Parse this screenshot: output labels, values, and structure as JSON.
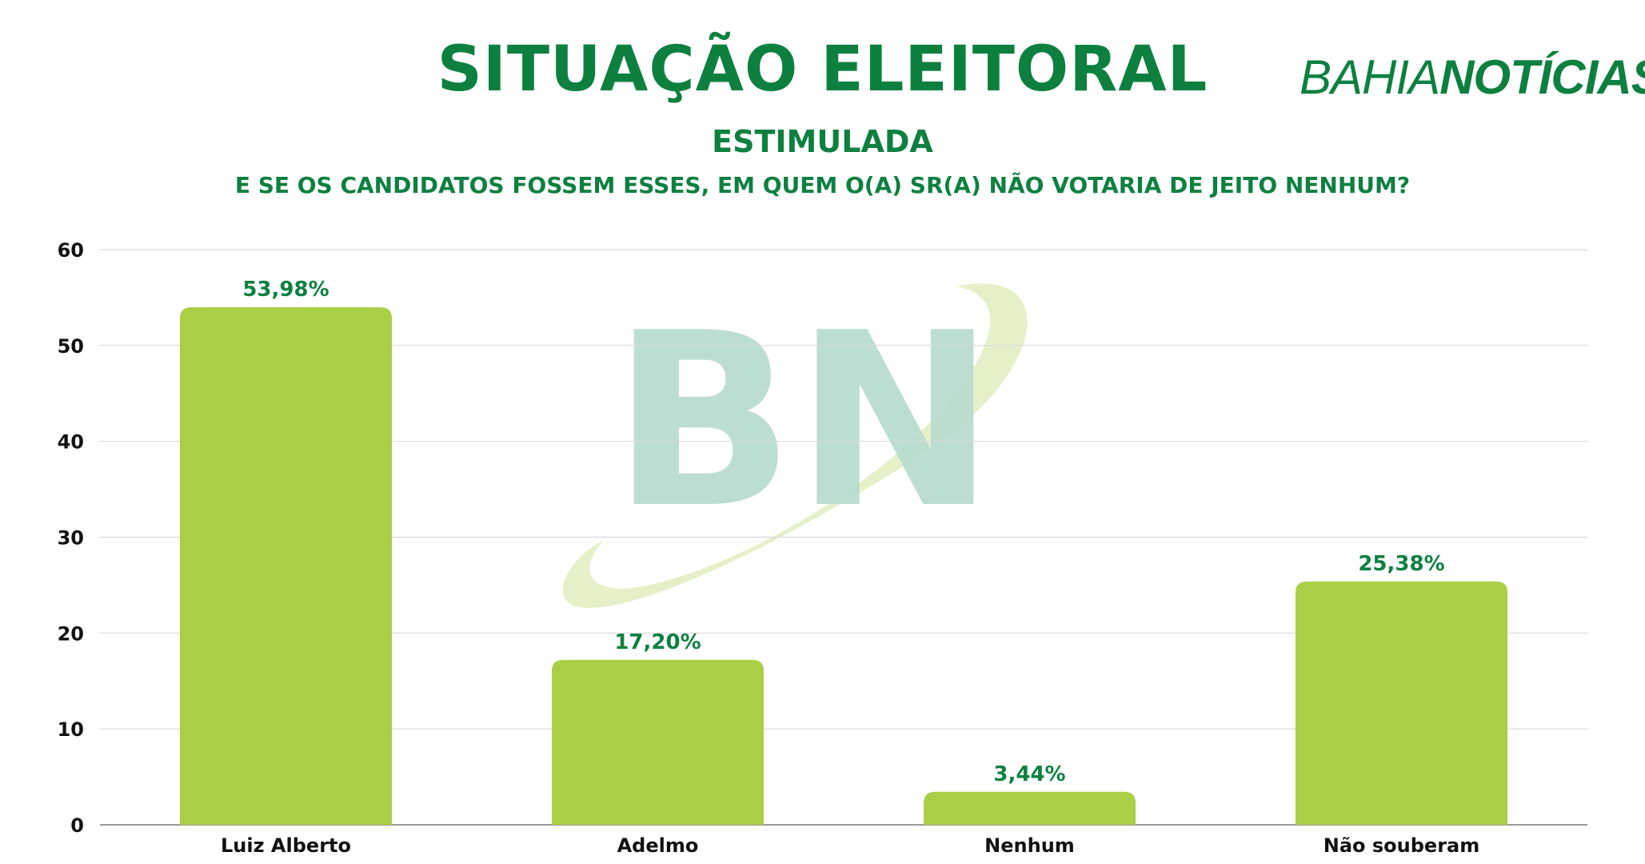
{
  "header": {
    "title": "SITUAÇÃO ELEITORAL",
    "logo_light": "BAHIA",
    "logo_bold": "NOTÍCIAS",
    "subtitle": "ESTIMULADA",
    "question": "E SE OS CANDIDATOS FOSSEM ESSES, EM QUEM O(A) SR(A) NÃO VOTARIA DE JEITO NENHUM?"
  },
  "watermark": {
    "text": "BN"
  },
  "colors": {
    "brand_green": "#0d8040",
    "bar_green": "#a8cf45",
    "watermark_green": "#b9ddd0",
    "swoosh": "#e6f0c8"
  },
  "chart_data": {
    "type": "bar",
    "categories": [
      "Luiz Alberto",
      "Adelmo",
      "Nenhum",
      "Não souberam"
    ],
    "values": [
      53.98,
      17.2,
      3.44,
      25.38
    ],
    "data_labels": [
      "53,98%",
      "17,20%",
      "3,44%",
      "25,38%"
    ],
    "ylim": [
      0,
      60
    ],
    "yticks": [
      0,
      10,
      20,
      30,
      40,
      50,
      60
    ],
    "grid": true,
    "legend": "none"
  }
}
